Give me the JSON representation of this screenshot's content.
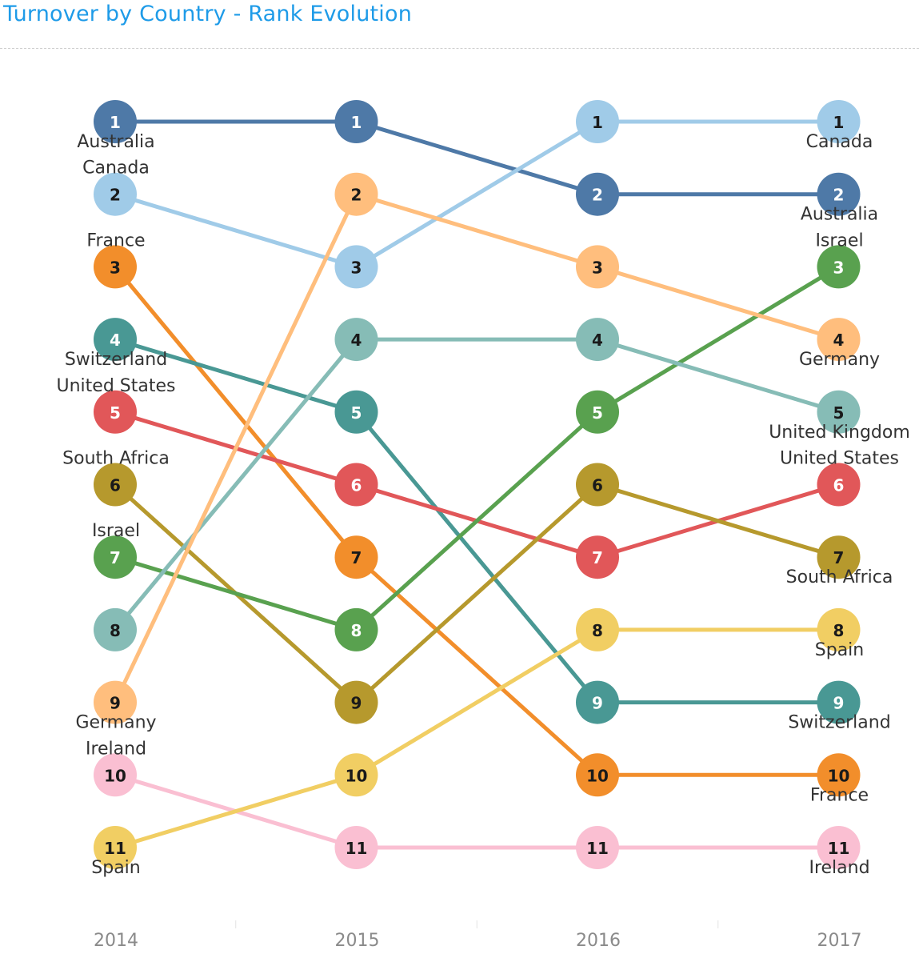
{
  "title": "Turnover by Country - Rank Evolution",
  "chart_data": {
    "type": "line",
    "subtype": "bump",
    "title": "Turnover by Country - Rank Evolution",
    "x": [
      "2014",
      "2015",
      "2016",
      "2017"
    ],
    "y_axis": "rank",
    "y_reversed": true,
    "ylim": [
      1,
      11
    ],
    "grid": false,
    "legend": "none",
    "series": [
      {
        "name": "Australia",
        "color": "#4e79a7",
        "text_color": "#ffffff",
        "values": [
          1,
          1,
          2,
          2
        ]
      },
      {
        "name": "Canada",
        "color": "#a0cbe8",
        "text_color": "#1a1a1a",
        "values": [
          2,
          3,
          1,
          1
        ]
      },
      {
        "name": "France",
        "color": "#f28e2b",
        "text_color": "#1a1a1a",
        "values": [
          3,
          7,
          10,
          10
        ]
      },
      {
        "name": "Switzerland",
        "color": "#499894",
        "text_color": "#ffffff",
        "values": [
          4,
          5,
          9,
          9
        ]
      },
      {
        "name": "United States",
        "color": "#e15759",
        "text_color": "#ffffff",
        "values": [
          5,
          6,
          7,
          6
        ]
      },
      {
        "name": "South Africa",
        "color": "#b6992d",
        "text_color": "#1a1a1a",
        "values": [
          6,
          9,
          6,
          7
        ]
      },
      {
        "name": "Israel",
        "color": "#59a14f",
        "text_color": "#ffffff",
        "values": [
          7,
          8,
          5,
          3
        ]
      },
      {
        "name": "United Kingdom",
        "color": "#86bcb6",
        "text_color": "#1a1a1a",
        "values": [
          8,
          4,
          4,
          5
        ]
      },
      {
        "name": "Germany",
        "color": "#ffbe7d",
        "text_color": "#1a1a1a",
        "values": [
          9,
          2,
          3,
          4
        ]
      },
      {
        "name": "Ireland",
        "color": "#fabfd2",
        "text_color": "#1a1a1a",
        "values": [
          10,
          11,
          11,
          11
        ]
      },
      {
        "name": "Spain",
        "color": "#f1ce63",
        "text_color": "#1a1a1a",
        "values": [
          11,
          10,
          8,
          8
        ]
      }
    ],
    "labels_2014": [
      {
        "series": "Australia",
        "text": "Australia",
        "pos": "below"
      },
      {
        "series": "Canada",
        "text": "Canada",
        "pos": "above"
      },
      {
        "series": "France",
        "text": "France",
        "pos": "above"
      },
      {
        "series": "Switzerland",
        "text": "Switzerland",
        "pos": "below"
      },
      {
        "series": "United States",
        "text": "United States",
        "pos": "above"
      },
      {
        "series": "South Africa",
        "text": "South Africa",
        "pos": "above"
      },
      {
        "series": "Israel",
        "text": "Israel",
        "pos": "above"
      },
      {
        "series": "Germany",
        "text": "Germany",
        "pos": "below"
      },
      {
        "series": "Ireland",
        "text": "Ireland",
        "pos": "above"
      },
      {
        "series": "Spain",
        "text": "Spain",
        "pos": "below"
      }
    ],
    "labels_2017": [
      {
        "series": "Canada",
        "text": "Canada",
        "pos": "below"
      },
      {
        "series": "Australia",
        "text": "Australia",
        "pos": "below"
      },
      {
        "series": "Israel",
        "text": "Israel",
        "pos": "above"
      },
      {
        "series": "Germany",
        "text": "Germany",
        "pos": "below"
      },
      {
        "series": "United Kingdom",
        "text": "United Kingdom",
        "pos": "below"
      },
      {
        "series": "United States",
        "text": "United States",
        "pos": "above"
      },
      {
        "series": "South Africa",
        "text": "South Africa",
        "pos": "below"
      },
      {
        "series": "Spain",
        "text": "Spain",
        "pos": "below"
      },
      {
        "series": "Switzerland",
        "text": "Switzerland",
        "pos": "below"
      },
      {
        "series": "France",
        "text": "France",
        "pos": "below"
      },
      {
        "series": "Ireland",
        "text": "Ireland",
        "pos": "below"
      }
    ]
  }
}
